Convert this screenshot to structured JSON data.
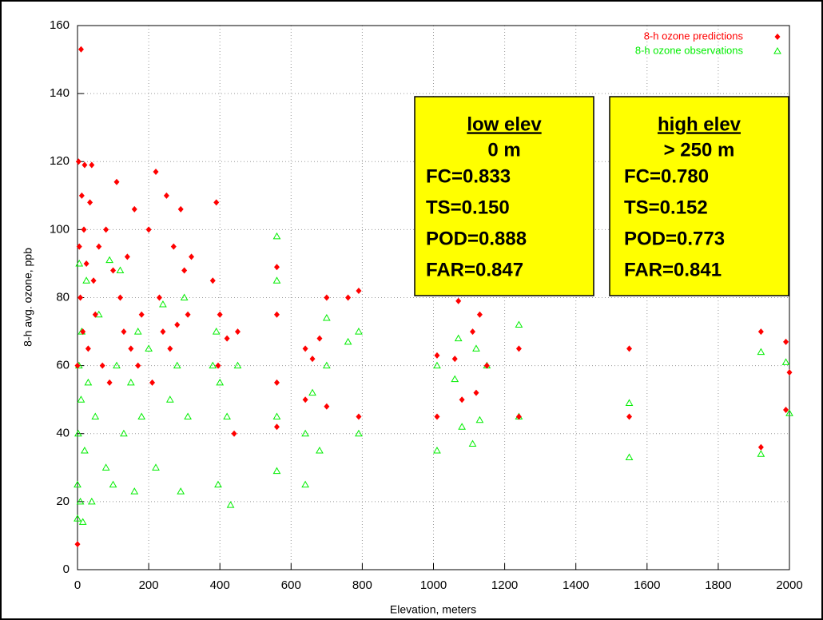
{
  "chart_data": {
    "type": "scatter",
    "x_label": "Elevation, meters",
    "y_label": "8-h avg. ozone, ppb",
    "xlim": [
      0,
      2000
    ],
    "ylim": [
      0,
      160
    ],
    "xticks": [
      0,
      200,
      400,
      600,
      800,
      1000,
      1200,
      1400,
      1600,
      1800,
      2000
    ],
    "yticks": [
      0,
      20,
      40,
      60,
      80,
      100,
      120,
      140,
      160
    ],
    "grid": true,
    "legend": "upper right",
    "series": [
      {
        "name": "8-h ozone predictions",
        "color": "#ff0000",
        "marker": "diamond",
        "x": [
          0,
          0,
          3,
          5,
          8,
          10,
          12,
          15,
          18,
          20,
          25,
          30,
          35,
          40,
          45,
          50,
          60,
          70,
          80,
          90,
          100,
          110,
          120,
          130,
          140,
          150,
          160,
          170,
          180,
          200,
          210,
          220,
          230,
          240,
          250,
          260,
          270,
          280,
          290,
          300,
          310,
          320,
          380,
          390,
          395,
          400,
          420,
          440,
          450,
          560,
          560,
          560,
          560,
          640,
          640,
          660,
          680,
          700,
          700,
          760,
          790,
          790,
          1010,
          1010,
          1060,
          1070,
          1080,
          1110,
          1120,
          1130,
          1150,
          1240,
          1240,
          1550,
          1550,
          1920,
          1920,
          1990,
          1990,
          2000
        ],
        "values": [
          7.5,
          60,
          120,
          95,
          80,
          153,
          110,
          70,
          100,
          119,
          90,
          65,
          108,
          119,
          85,
          75,
          95,
          60,
          100,
          55,
          88,
          114,
          80,
          70,
          92,
          65,
          106,
          60,
          75,
          100,
          55,
          117,
          80,
          70,
          110,
          65,
          95,
          72,
          106,
          88,
          75,
          92,
          85,
          108,
          60,
          75,
          68,
          40,
          70,
          89,
          75,
          55,
          42,
          65,
          50,
          62,
          68,
          80,
          48,
          80,
          82,
          45,
          63,
          45,
          62,
          79,
          50,
          70,
          52,
          75,
          60,
          65,
          45,
          65,
          45,
          70,
          36,
          67,
          47,
          58
        ]
      },
      {
        "name": "8-h ozone observations",
        "color": "#00ee00",
        "marker": "triangle",
        "x": [
          0,
          0,
          2,
          4,
          5,
          8,
          10,
          12,
          15,
          20,
          25,
          30,
          40,
          50,
          60,
          80,
          90,
          100,
          110,
          120,
          130,
          150,
          160,
          170,
          180,
          200,
          220,
          240,
          260,
          280,
          290,
          300,
          310,
          380,
          390,
          395,
          400,
          420,
          430,
          450,
          560,
          560,
          560,
          560,
          640,
          640,
          660,
          680,
          700,
          700,
          760,
          790,
          790,
          1010,
          1010,
          1060,
          1070,
          1080,
          1110,
          1120,
          1130,
          1150,
          1240,
          1240,
          1550,
          1550,
          1920,
          1920,
          1990,
          2000
        ],
        "values": [
          15,
          25,
          40,
          60,
          90,
          20,
          50,
          70,
          14,
          35,
          85,
          55,
          20,
          45,
          75,
          30,
          91,
          25,
          60,
          88,
          40,
          55,
          23,
          70,
          45,
          65,
          30,
          78,
          50,
          60,
          23,
          80,
          45,
          60,
          70,
          25,
          55,
          45,
          19,
          60,
          98,
          85,
          45,
          29,
          40,
          25,
          52,
          35,
          60,
          74,
          67,
          70,
          40,
          35,
          60,
          56,
          68,
          42,
          37,
          65,
          44,
          60,
          72,
          45,
          49,
          33,
          64,
          34,
          61,
          46
        ]
      }
    ],
    "annotations": [
      {
        "heading": "low elev",
        "subheading": "0 m",
        "lines": [
          "FC=0.833",
          "TS=0.150",
          "POD=0.888",
          "FAR=0.847"
        ]
      },
      {
        "heading": "high elev",
        "subheading": "> 250 m",
        "lines": [
          "FC=0.780",
          "TS=0.152",
          "POD=0.773",
          "FAR=0.841"
        ]
      }
    ]
  }
}
